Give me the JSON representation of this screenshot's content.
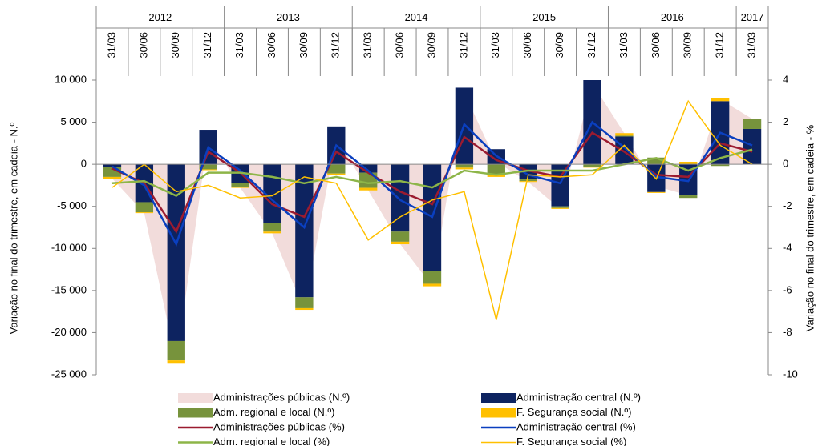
{
  "chart_data": {
    "type": "bar",
    "groups": [
      {
        "label": "2012",
        "categories": [
          "31/03",
          "30/06",
          "30/09",
          "31/12"
        ]
      },
      {
        "label": "2013",
        "categories": [
          "31/03",
          "30/06",
          "30/09",
          "31/12"
        ]
      },
      {
        "label": "2014",
        "categories": [
          "31/03",
          "30/06",
          "30/09",
          "31/12"
        ]
      },
      {
        "label": "2015",
        "categories": [
          "31/03",
          "30/06",
          "30/09",
          "31/12"
        ]
      },
      {
        "label": "2016",
        "categories": [
          "31/03",
          "30/06",
          "30/09",
          "31/12"
        ]
      },
      {
        "label": "2017",
        "categories": [
          "31/03"
        ]
      }
    ],
    "y_label": "Variação no final do trimestre, em cadeia  - N.º",
    "y2_label": "Variação no final do trimestre, em cadeia  - %",
    "ylim": [
      -25000,
      10000
    ],
    "yticks": [
      {
        "value": -25000,
        "label": "-25 000"
      },
      {
        "value": -20000,
        "label": "-20 000"
      },
      {
        "value": -15000,
        "label": "-15 000"
      },
      {
        "value": -10000,
        "label": "-10 000"
      },
      {
        "value": -5000,
        "label": "-5 000"
      },
      0,
      {
        "value": 5000,
        "label": "5 000"
      },
      {
        "value": 10000,
        "label": "10 000"
      }
    ],
    "y2lim": [
      -10,
      4
    ],
    "y2ticks": [
      -10,
      -8,
      -6,
      -4,
      -2,
      0,
      2,
      4
    ],
    "series": [
      {
        "name": "Administrações públicas (N.º)",
        "type": "area",
        "color": "#f2dcdb",
        "values": [
          -1700,
          -5800,
          -23600,
          3400,
          -2800,
          -8200,
          -17300,
          3200,
          -3100,
          -9500,
          -14500,
          8500,
          300,
          -2100,
          -5300,
          9600,
          3700,
          -2600,
          -3700,
          7700,
          5400
        ]
      },
      {
        "name": "Administração central (N.º)",
        "type": "bar",
        "color": "#0d2360",
        "values": [
          -300,
          -4500,
          -21000,
          4100,
          -2200,
          -7000,
          -15800,
          4500,
          -1000,
          -8000,
          -12700,
          9100,
          1800,
          -1800,
          -5000,
          10000,
          3300,
          -3300,
          -3700,
          7500,
          4200
        ]
      },
      {
        "name": "Adm. regional e local (N.º)",
        "type": "bar",
        "color": "#77933c",
        "values": [
          -1200,
          -1200,
          -2300,
          -600,
          -500,
          -1000,
          -1300,
          -1100,
          -1800,
          -1200,
          -1500,
          -400,
          -1200,
          -200,
          -200,
          -300,
          100,
          800,
          -300,
          -200,
          1200
        ]
      },
      {
        "name": "F. Segurança social  (N.º)",
        "type": "bar",
        "color": "#ffc000",
        "values": [
          -200,
          -100,
          -300,
          -100,
          -100,
          -200,
          -200,
          -200,
          -300,
          -300,
          -300,
          -200,
          -300,
          -100,
          -100,
          -100,
          300,
          -100,
          300,
          400,
          0
        ]
      },
      {
        "name": "Administrações públicas (%)",
        "type": "line",
        "axis": "y2",
        "color": "#9b1b30",
        "width": 2.5,
        "values": [
          -0.2,
          -0.9,
          -3.2,
          0.6,
          -0.4,
          -1.9,
          -2.5,
          0.6,
          -0.4,
          -1.3,
          -1.9,
          1.3,
          0.2,
          -0.3,
          -0.6,
          1.5,
          0.6,
          -0.5,
          -0.6,
          1.0,
          0.6
        ]
      },
      {
        "name": "Administração central  (%)",
        "type": "line",
        "axis": "y2",
        "color": "#0a3fbf",
        "width": 2.5,
        "values": [
          -0.1,
          -1.0,
          -3.8,
          0.8,
          -0.3,
          -1.7,
          -3.0,
          0.9,
          -0.3,
          -1.7,
          -2.5,
          1.9,
          0.4,
          -0.5,
          -0.9,
          2.0,
          0.8,
          -0.6,
          -0.8,
          1.5,
          0.9
        ]
      },
      {
        "name": "Adm. regional e local (%)",
        "type": "line",
        "axis": "y2",
        "color": "#8db548",
        "width": 2.5,
        "values": [
          -0.9,
          -0.8,
          -1.5,
          -0.4,
          -0.4,
          -0.6,
          -0.9,
          -0.6,
          -0.9,
          -0.8,
          -1.1,
          -0.3,
          -0.5,
          -0.3,
          -0.3,
          -0.3,
          0.0,
          0.3,
          -0.3,
          0.3,
          0.7
        ]
      },
      {
        "name": "F. Segurança social  (%)",
        "type": "line",
        "axis": "y2",
        "color": "#ffc000",
        "width": 1.5,
        "values": [
          -1.1,
          0.0,
          -1.3,
          -1.0,
          -1.6,
          -1.5,
          -0.6,
          -0.9,
          -3.6,
          -2.5,
          -1.7,
          -1.3,
          -7.4,
          -0.5,
          -0.6,
          -0.5,
          0.9,
          -0.7,
          3.0,
          0.9,
          0.0
        ]
      }
    ]
  }
}
